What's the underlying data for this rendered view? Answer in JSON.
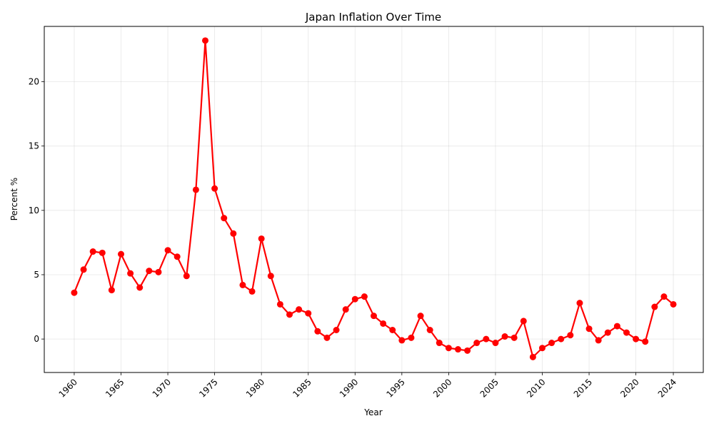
{
  "chart_data": {
    "type": "line",
    "title": "Japan Inflation Over Time",
    "xlabel": "Year",
    "ylabel": "Percent %",
    "xlim": [
      1956.8,
      2027.2
    ],
    "ylim": [
      -2.6,
      24.3
    ],
    "x_ticks": [
      1960,
      1965,
      1970,
      1975,
      1980,
      1985,
      1990,
      1995,
      2000,
      2005,
      2010,
      2015,
      2020,
      2024
    ],
    "y_ticks": [
      0,
      5,
      10,
      15,
      20
    ],
    "grid": true,
    "series": [
      {
        "color": "#ff0000",
        "marker": "circle",
        "x": [
          1960,
          1961,
          1962,
          1963,
          1964,
          1965,
          1966,
          1967,
          1968,
          1969,
          1970,
          1971,
          1972,
          1973,
          1974,
          1975,
          1976,
          1977,
          1978,
          1979,
          1980,
          1981,
          1982,
          1983,
          1984,
          1985,
          1986,
          1987,
          1988,
          1989,
          1990,
          1991,
          1992,
          1993,
          1994,
          1995,
          1996,
          1997,
          1998,
          1999,
          2000,
          2001,
          2002,
          2003,
          2004,
          2005,
          2006,
          2007,
          2008,
          2009,
          2010,
          2011,
          2012,
          2013,
          2014,
          2015,
          2016,
          2017,
          2018,
          2019,
          2020,
          2021,
          2022,
          2023,
          2024
        ],
        "values": [
          3.6,
          5.4,
          6.8,
          6.7,
          3.8,
          6.6,
          5.1,
          4.0,
          5.3,
          5.2,
          6.9,
          6.4,
          4.9,
          11.6,
          23.2,
          11.7,
          9.4,
          8.2,
          4.2,
          3.7,
          7.8,
          4.9,
          2.7,
          1.9,
          2.3,
          2.0,
          0.6,
          0.1,
          0.7,
          2.3,
          3.1,
          3.3,
          1.8,
          1.2,
          0.7,
          -0.1,
          0.1,
          1.8,
          0.7,
          -0.3,
          -0.7,
          -0.8,
          -0.9,
          -0.3,
          0.0,
          -0.3,
          0.2,
          0.1,
          1.4,
          -1.4,
          -0.7,
          -0.3,
          0.0,
          0.3,
          2.8,
          0.8,
          -0.1,
          0.5,
          1.0,
          0.5,
          0.0,
          -0.2,
          2.5,
          3.3,
          2.7
        ]
      }
    ]
  }
}
